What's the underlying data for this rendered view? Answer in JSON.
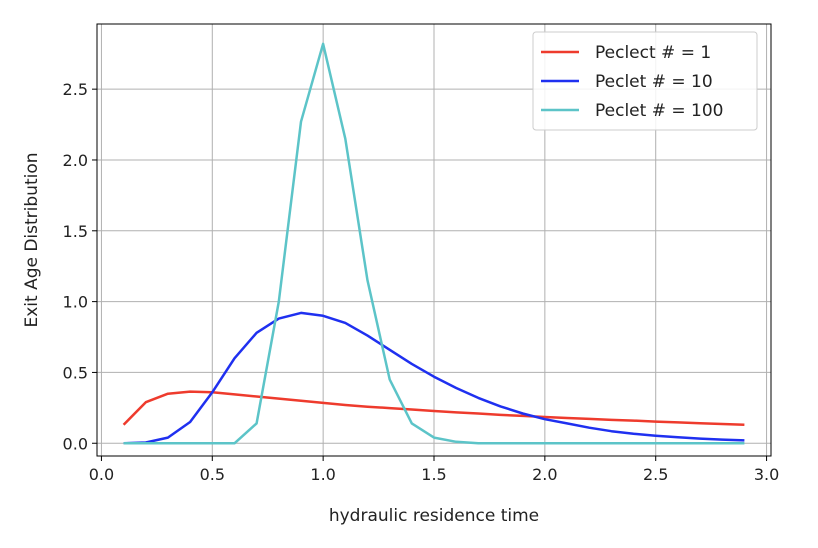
{
  "chart_data": {
    "type": "line",
    "title": "",
    "xlabel": "hydraulic residence time",
    "ylabel": "Exit Age Distribution",
    "xlim": [
      -0.02,
      3.02
    ],
    "ylim": [
      -0.09,
      2.96
    ],
    "xticks": [
      0.0,
      0.5,
      1.0,
      1.5,
      2.0,
      2.5,
      3.0
    ],
    "xtick_labels": [
      "0.0",
      "0.5",
      "1.0",
      "1.5",
      "2.0",
      "2.5",
      "3.0"
    ],
    "yticks": [
      0.0,
      0.5,
      1.0,
      1.5,
      2.0,
      2.5
    ],
    "ytick_labels": [
      "0.0",
      "0.5",
      "1.0",
      "1.5",
      "2.0",
      "2.5"
    ],
    "grid": true,
    "legend_position": "top-right",
    "x": [
      0.1,
      0.2,
      0.3,
      0.4,
      0.5,
      0.6,
      0.7,
      0.8,
      0.9,
      1.0,
      1.1,
      1.2,
      1.3,
      1.4,
      1.5,
      1.6,
      1.7,
      1.8,
      1.9,
      2.0,
      2.1,
      2.2,
      2.3,
      2.4,
      2.5,
      2.6,
      2.7,
      2.8,
      2.9
    ],
    "series": [
      {
        "name": "Peclect # = 1",
        "color": "#ee3b2d",
        "values": [
          0.13,
          0.29,
          0.35,
          0.365,
          0.36,
          0.345,
          0.33,
          0.315,
          0.3,
          0.285,
          0.27,
          0.258,
          0.248,
          0.238,
          0.228,
          0.218,
          0.21,
          0.2,
          0.193,
          0.185,
          0.178,
          0.172,
          0.165,
          0.16,
          0.153,
          0.147,
          0.141,
          0.136,
          0.13
        ]
      },
      {
        "name": "Peclet # = 10",
        "color": "#1f30f0",
        "values": [
          0.0,
          0.005,
          0.04,
          0.15,
          0.36,
          0.6,
          0.78,
          0.88,
          0.92,
          0.9,
          0.85,
          0.76,
          0.66,
          0.56,
          0.47,
          0.39,
          0.32,
          0.26,
          0.21,
          0.17,
          0.14,
          0.11,
          0.085,
          0.067,
          0.053,
          0.042,
          0.033,
          0.026,
          0.02
        ]
      },
      {
        "name": "Peclet # = 100",
        "color": "#5cc4c8",
        "values": [
          0.0,
          0.0,
          0.0,
          0.0,
          0.0,
          0.0,
          0.14,
          1.0,
          2.27,
          2.82,
          2.15,
          1.15,
          0.45,
          0.14,
          0.04,
          0.01,
          0.0,
          0.0,
          0.0,
          0.0,
          0.0,
          0.0,
          0.0,
          0.0,
          0.0,
          0.0,
          0.0,
          0.0,
          0.0
        ]
      }
    ]
  }
}
